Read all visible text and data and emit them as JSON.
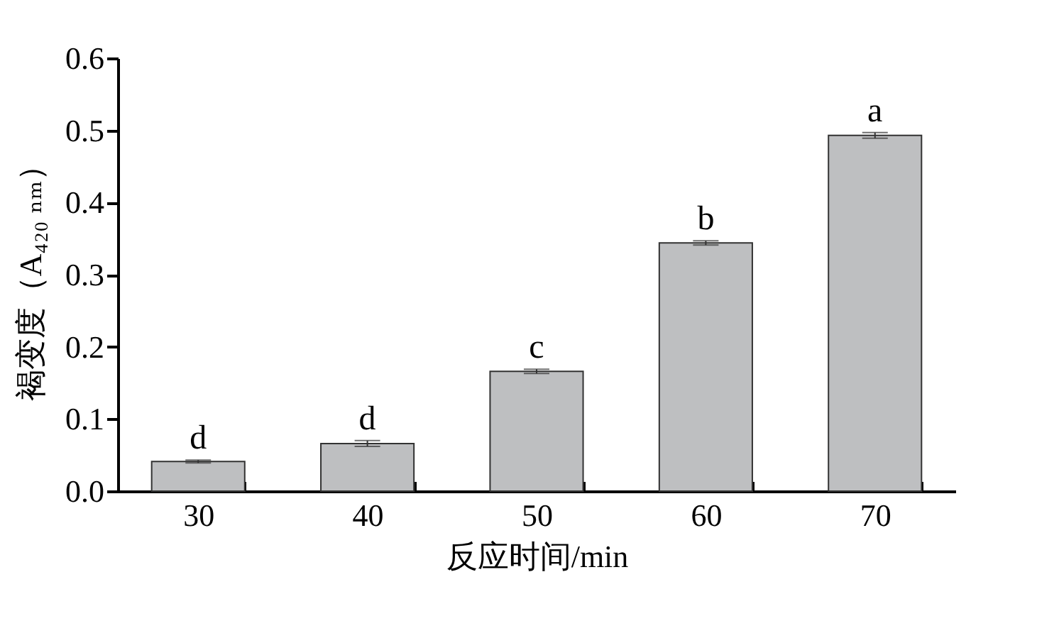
{
  "chart_data": {
    "type": "bar",
    "xlabel": "反应时间/min",
    "ylabel": "褐变度（A₄₂₀ ₙₘ）",
    "categories": [
      "30",
      "40",
      "50",
      "60",
      "70"
    ],
    "values": [
      0.041,
      0.066,
      0.166,
      0.344,
      0.493
    ],
    "errors": [
      0.002,
      0.004,
      0.003,
      0.003,
      0.004
    ],
    "color": "#bebfc1",
    "ylim": [
      0,
      0.6
    ],
    "yticks": [
      {
        "value": 0,
        "label": "0.0"
      },
      0.1,
      0.2,
      0.3,
      0.4,
      0.5,
      0.6
    ],
    "grid": false,
    "annotations": [
      {
        "text": "d",
        "x": "30",
        "y": 0.041
      },
      {
        "text": "d",
        "x": "40",
        "y": 0.066
      },
      {
        "text": "c",
        "x": "50",
        "y": 0.166
      },
      {
        "text": "b",
        "x": "60",
        "y": 0.344
      },
      {
        "text": "a",
        "x": "70",
        "y": 0.493
      }
    ]
  }
}
